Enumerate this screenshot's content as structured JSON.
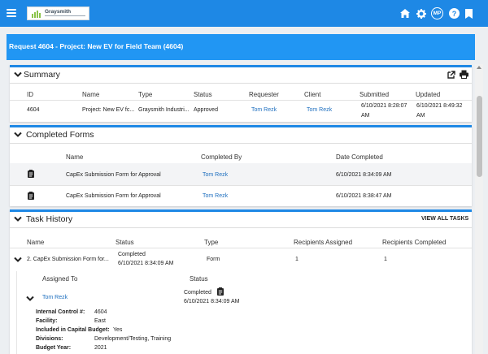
{
  "topbar": {
    "logo_text": "Graysmith",
    "avatar_initials": "MP",
    "help_glyph": "?",
    "icons": [
      "menu-icon",
      "home-icon",
      "gear-icon",
      "avatar",
      "help-icon",
      "bookmark-icon"
    ],
    "color": "#1e88e5"
  },
  "request": {
    "title": "Request 4604 - Project: New EV for Field Team (4604)"
  },
  "summary": {
    "title": "Summary",
    "headers": {
      "id": "ID",
      "name": "Name",
      "type": "Type",
      "status": "Status",
      "requester": "Requester",
      "client": "Client",
      "submitted": "Submitted",
      "updated": "Updated"
    },
    "row": {
      "id": "4604",
      "name": "Project: New EV fc...",
      "type": "Graysmith Industri...",
      "status": "Approved",
      "requester": "Tom Rezk",
      "client": "Tom Rezk",
      "submitted_1": "6/10/2021 8:28:07",
      "submitted_2": "AM",
      "updated_1": "6/10/2021 8:49:32",
      "updated_2": "AM"
    }
  },
  "completed_forms": {
    "title": "Completed Forms",
    "headers": {
      "name": "Name",
      "completed_by": "Completed By",
      "date_completed": "Date Completed"
    },
    "rows": [
      {
        "name": "CapEx Submission Form for Approval",
        "completed_by": "Tom Rezk",
        "date": "6/10/2021 8:34:09 AM"
      },
      {
        "name": "CapEx Submission Form for Approval",
        "completed_by": "Tom Rezk",
        "date": "6/10/2021 8:38:47 AM"
      }
    ]
  },
  "task_history": {
    "title": "Task History",
    "view_all": "VIEW ALL TASKS",
    "headers": {
      "name": "Name",
      "status": "Status",
      "type": "Type",
      "recipients_assigned": "Recipients Assigned",
      "recipients_completed": "Recipients Completed"
    },
    "task": {
      "name": "2. CapEx Submission Form for...",
      "status": "Completed",
      "status_date": "6/10/2021 8:34:09 AM",
      "type": "Form",
      "recipients_assigned": "1",
      "recipients_completed": "1"
    },
    "assignment": {
      "assigned_to_header": "Assigned To",
      "status_header": "Status",
      "assignee": "Tom Rezk",
      "status": "Completed",
      "status_date": "6/10/2021 8:34:09 AM",
      "fields": [
        {
          "label": "Internal Control #:",
          "value": "4604"
        },
        {
          "label": "Facility:",
          "value": "East"
        },
        {
          "label": "Included in Capital Budget:",
          "value": "Yes"
        },
        {
          "label": "Divisions:",
          "value": "Development/Testing, Training"
        },
        {
          "label": "Budget Year:",
          "value": "2021"
        }
      ]
    }
  }
}
